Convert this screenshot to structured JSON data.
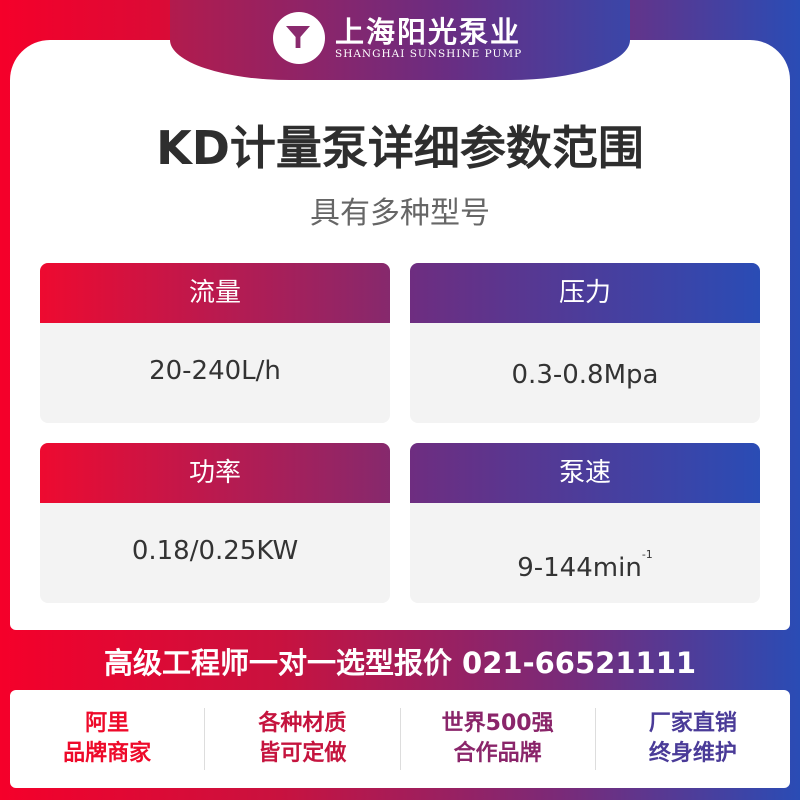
{
  "brand": {
    "name_cn": "上海阳光泵业",
    "name_en": "SHANGHAI SUNSHINE PUMP"
  },
  "title": "KD计量泵详细参数范围",
  "subtitle": "具有多种型号",
  "specs": [
    {
      "label": "流量",
      "value": "20-240L/h"
    },
    {
      "label": "压力",
      "value": "0.3-0.8Mpa"
    },
    {
      "label": "功率",
      "value": "0.18/0.25KW"
    },
    {
      "label": "泵速",
      "value": "9-144min",
      "sup": "-1"
    }
  ],
  "hotline": "高级工程师一对一选型报价  021-66521111",
  "features": [
    {
      "line1": "阿里",
      "line2": "品牌商家",
      "color": "#ee0a2a"
    },
    {
      "line1": "各种材质",
      "line2": "皆可定做",
      "color": "#c5143e"
    },
    {
      "line1": "世界500强",
      "line2": "合作品牌",
      "color": "#8a256a"
    },
    {
      "line1": "厂家直销",
      "line2": "终身维护",
      "color": "#4a3b98"
    }
  ]
}
